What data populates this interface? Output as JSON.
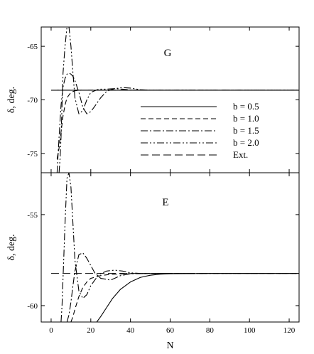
{
  "chart_data": [
    {
      "type": "line",
      "panel_label": "G",
      "xlabel": "",
      "ylabel": "δ, deg.",
      "xlim": [
        -5,
        125
      ],
      "ylim": [
        -76.8,
        -63.2
      ],
      "x_ticks": [
        0,
        20,
        40,
        60,
        80,
        100,
        120
      ],
      "y_ticks": [
        -65,
        -70,
        -75
      ],
      "y_tick_labels": [
        "-65",
        "-70",
        "-75"
      ],
      "legend_position": "center-right",
      "series": [
        {
          "name": "b = 0.5",
          "dash": "solid",
          "x": [
            3,
            4,
            6,
            8,
            10,
            15,
            20,
            30,
            60,
            125
          ],
          "y": [
            -69.1,
            -69.1,
            -69.1,
            -69.1,
            -69.1,
            -69.1,
            -69.1,
            -69.1,
            -69.1,
            -69.1
          ]
        },
        {
          "name": "b = 1.0",
          "dash": "dash",
          "x": [
            3,
            4,
            5,
            6,
            7,
            8,
            10,
            12,
            15,
            20,
            30,
            60,
            125
          ],
          "y": [
            -75.5,
            -74.5,
            -73.0,
            -71.5,
            -70.5,
            -69.8,
            -69.3,
            -69.15,
            -69.1,
            -69.1,
            -69.1,
            -69.1,
            -69.1
          ]
        },
        {
          "name": "b = 1.5",
          "dash": "dashdot",
          "x": [
            3,
            4,
            5,
            6,
            7,
            8,
            9,
            10,
            11,
            12,
            14,
            16,
            18,
            20,
            22,
            25,
            28,
            32,
            36,
            40,
            50,
            60,
            125
          ],
          "y": [
            -76.8,
            -73.5,
            -70.5,
            -68.8,
            -68.0,
            -67.6,
            -67.5,
            -67.6,
            -67.8,
            -68.2,
            -69.3,
            -70.7,
            -71.3,
            -71.1,
            -70.6,
            -69.8,
            -69.2,
            -68.95,
            -69.0,
            -69.08,
            -69.1,
            -69.1,
            -69.1
          ]
        },
        {
          "name": "b = 2.0",
          "dash": "dashdotdot",
          "x": [
            4,
            4.5,
            5,
            5.5,
            6,
            7,
            8,
            9,
            10,
            11,
            12,
            14,
            16,
            18,
            20,
            24,
            28,
            32,
            36,
            40,
            45,
            50,
            60,
            125
          ],
          "y": [
            -76.8,
            -75.5,
            -73.5,
            -70.5,
            -67.5,
            -65.0,
            -63.2,
            -63.2,
            -65.0,
            -67.5,
            -69.8,
            -71.3,
            -71.0,
            -70.0,
            -69.3,
            -69.0,
            -69.0,
            -68.95,
            -68.85,
            -68.9,
            -69.05,
            -69.1,
            -69.1,
            -69.1
          ]
        },
        {
          "name": "Ext.",
          "dash": "longdash",
          "x": [
            0,
            125
          ],
          "y": [
            -69.1,
            -69.1
          ]
        }
      ]
    },
    {
      "type": "line",
      "panel_label": "E",
      "xlabel": "N",
      "ylabel": "δ, deg.",
      "xlim": [
        -5,
        125
      ],
      "ylim": [
        -60.9,
        -52.7
      ],
      "x_ticks": [
        0,
        20,
        40,
        60,
        80,
        100,
        120
      ],
      "x_tick_labels": [
        "0",
        "20",
        "40",
        "60",
        "80",
        "100",
        "120"
      ],
      "y_ticks": [
        -55,
        -60
      ],
      "y_tick_labels": [
        "-55",
        "-60"
      ],
      "series": [
        {
          "name": "b = 0.5",
          "dash": "solid",
          "x": [
            23,
            25,
            28,
            31,
            35,
            40,
            45,
            50,
            55,
            60,
            70,
            80,
            125
          ],
          "y": [
            -60.9,
            -60.6,
            -60.1,
            -59.6,
            -59.1,
            -58.7,
            -58.45,
            -58.33,
            -58.27,
            -58.25,
            -58.24,
            -58.23,
            -58.23
          ]
        },
        {
          "name": "b = 1.0",
          "dash": "dash",
          "x": [
            10,
            11,
            12,
            14,
            16,
            18,
            20,
            25,
            30,
            40,
            60,
            125
          ],
          "y": [
            -60.9,
            -60.6,
            -60.2,
            -59.5,
            -59.0,
            -58.7,
            -58.5,
            -58.35,
            -58.28,
            -58.24,
            -58.23,
            -58.23
          ]
        },
        {
          "name": "b = 1.5",
          "dash": "dashdot",
          "x": [
            8,
            9,
            10,
            11,
            12,
            14,
            16,
            18,
            20,
            22,
            25,
            30,
            35,
            40,
            50,
            60,
            80,
            125
          ],
          "y": [
            -60.9,
            -60.5,
            -59.8,
            -58.9,
            -58.1,
            -57.2,
            -57.1,
            -57.4,
            -57.8,
            -58.2,
            -58.5,
            -58.6,
            -58.35,
            -58.25,
            -58.23,
            -58.23,
            -58.23,
            -58.23
          ]
        },
        {
          "name": "b = 2.0",
          "dash": "dashdotdot",
          "x": [
            5,
            5.5,
            6,
            7,
            8,
            9,
            10,
            11,
            12,
            14,
            16,
            18,
            20,
            24,
            28,
            32,
            36,
            40,
            45,
            50,
            60,
            125
          ],
          "y": [
            -60.9,
            -60.0,
            -58.5,
            -55.5,
            -53.0,
            -52.7,
            -53.5,
            -55.5,
            -57.5,
            -59.2,
            -59.6,
            -59.4,
            -58.9,
            -58.3,
            -58.1,
            -58.05,
            -58.1,
            -58.2,
            -58.23,
            -58.23,
            -58.23,
            -58.23
          ]
        },
        {
          "name": "Ext.",
          "dash": "longdash",
          "x": [
            0,
            125
          ],
          "y": [
            -58.23,
            -58.23
          ]
        }
      ]
    }
  ]
}
